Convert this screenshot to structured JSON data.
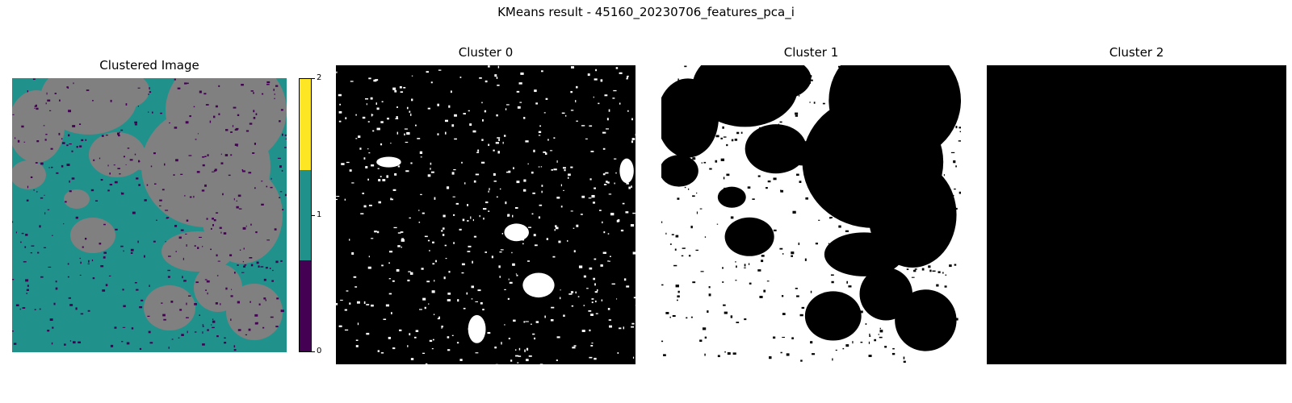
{
  "figure": {
    "suptitle": "KMeans result - 45160_20230706_features_pca_i"
  },
  "chart_data": [
    {
      "type": "heatmap",
      "title": "Clustered Image",
      "colorbar": {
        "ticks": [
          "0",
          "1",
          "2"
        ],
        "colors": [
          "#440154",
          "#21918c",
          "#fde725"
        ],
        "range": [
          0,
          2
        ]
      },
      "palette": {
        "cluster_0": "#440154",
        "cluster_1": "#21918c",
        "masked": "#808080"
      }
    },
    {
      "type": "heatmap",
      "title": "Cluster 0",
      "palette": {
        "on": "#ffffff",
        "off": "#000000"
      }
    },
    {
      "type": "heatmap",
      "title": "Cluster 1",
      "palette": {
        "on": "#ffffff",
        "off": "#000000"
      }
    },
    {
      "type": "heatmap",
      "title": "Cluster 2",
      "palette": {
        "on": "#ffffff",
        "off": "#000000"
      }
    }
  ]
}
